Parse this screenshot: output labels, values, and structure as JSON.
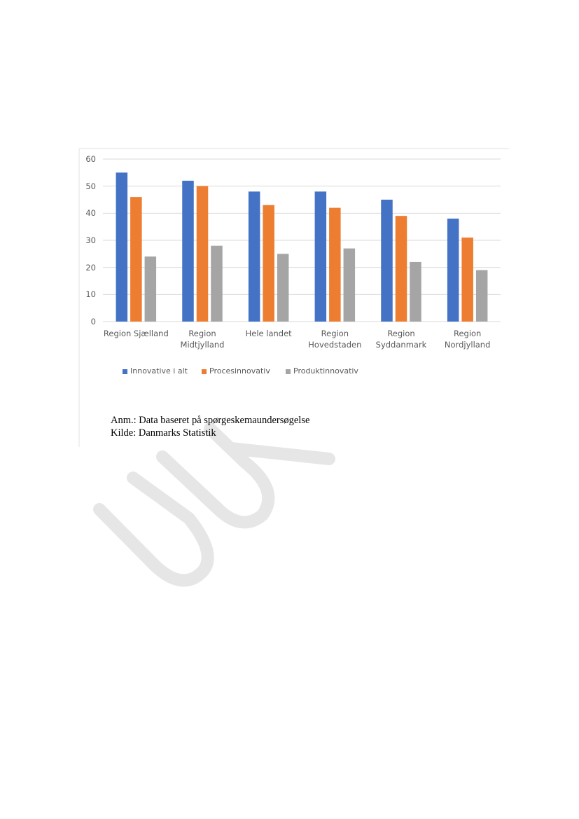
{
  "chart_data": {
    "type": "bar",
    "categories": [
      "Region Sjælland",
      "Region Midtjylland",
      "Hele landet",
      "Region Hovedstaden",
      "Region Syddanmark",
      "Region Nordjylland"
    ],
    "series": [
      {
        "name": "Innovative i alt",
        "color": "#4472c4",
        "values": [
          55,
          52,
          48,
          48,
          45,
          38
        ]
      },
      {
        "name": "Procesinnovativ",
        "color": "#ed7d31",
        "values": [
          46,
          50,
          43,
          42,
          39,
          31
        ]
      },
      {
        "name": "Produktinnovativ",
        "color": "#a5a5a5",
        "values": [
          24,
          28,
          25,
          27,
          22,
          19
        ]
      }
    ],
    "ylim": [
      0,
      60
    ],
    "yticks": [
      0,
      10,
      20,
      30,
      40,
      50,
      60
    ],
    "grid": true,
    "legend": "bottom"
  },
  "notes": [
    "Anm.: Data baseret på spørgeskemaundersøgelse",
    "Kilde: Danmarks Statistik"
  ]
}
